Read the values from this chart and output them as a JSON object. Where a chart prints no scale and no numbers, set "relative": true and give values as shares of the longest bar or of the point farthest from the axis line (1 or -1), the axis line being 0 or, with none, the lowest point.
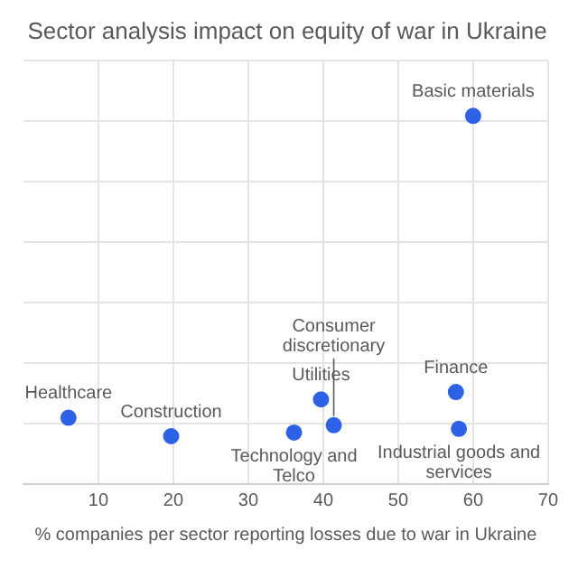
{
  "chart_data": {
    "type": "scatter",
    "title": "Sector analysis impact on equity of war in Ukraine",
    "xlabel": "% companies per sector reporting losses due to war in Ukraine",
    "x": [
      60,
      57.7,
      58.1,
      39.7,
      41.4,
      36.1,
      19.7,
      6
    ],
    "values": [
      1,
      0.25,
      0.15,
      0.23,
      0.16,
      0.14,
      0.13,
      0.18
    ],
    "color": "#2e62e6",
    "relative": true,
    "xlim": [
      0,
      70
    ],
    "xticks": [
      10,
      20,
      30,
      40,
      50,
      60,
      70
    ],
    "grid": true,
    "marker": "circle",
    "annotations": [
      {
        "text": "Basic materials",
        "x": 60,
        "y": 1
      },
      {
        "text": "Finance",
        "x": 57.7,
        "y": 0.25
      },
      {
        "text": "Industrial goods and services",
        "x": 58.1,
        "y": 0.15
      },
      {
        "text": "Utilities",
        "x": 39.7,
        "y": 0.23
      },
      {
        "text": "Consumer discretionary",
        "x": 41.4,
        "y": 0.16
      },
      {
        "text": "Technology and Telco",
        "x": 36.1,
        "y": 0.14
      },
      {
        "text": "Construction",
        "x": 19.7,
        "y": 0.13
      },
      {
        "text": "Healthcare",
        "x": 6,
        "y": 0.18
      }
    ]
  }
}
